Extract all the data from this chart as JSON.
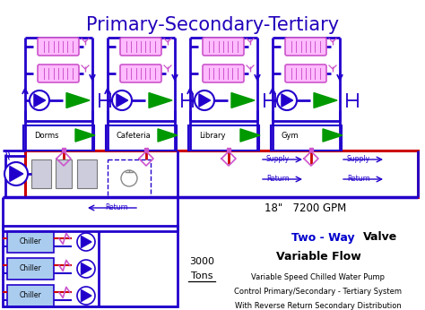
{
  "title": "Primary-Secondary-Tertiary",
  "title_color": "#2200BB",
  "bg_color": "#FFFFFF",
  "blue": "#2200CC",
  "red": "#CC0000",
  "purple": "#CC55CC",
  "green": "#009900",
  "chiller_fill": "#AACCEE",
  "grey_fill": "#BBCCDD",
  "buildings": [
    "Dorms",
    "Cafeteria",
    "Library",
    "Gym"
  ],
  "text_blue": "#0000CC",
  "gpm_text": "18\"   7200 GPM",
  "return_text": "Return",
  "supply_text": "Supply",
  "tons_line1": "3000",
  "tons_line2": "Tons",
  "tw1": "Two - Way",
  "tw2": "Valve",
  "tw3": "Variable Flow",
  "tw4": "Variable Speed Chilled Water Pump",
  "tw5": "Control Primary/Secondary - Tertiary System",
  "tw6": "With Reverse Return Secondary Distribution"
}
